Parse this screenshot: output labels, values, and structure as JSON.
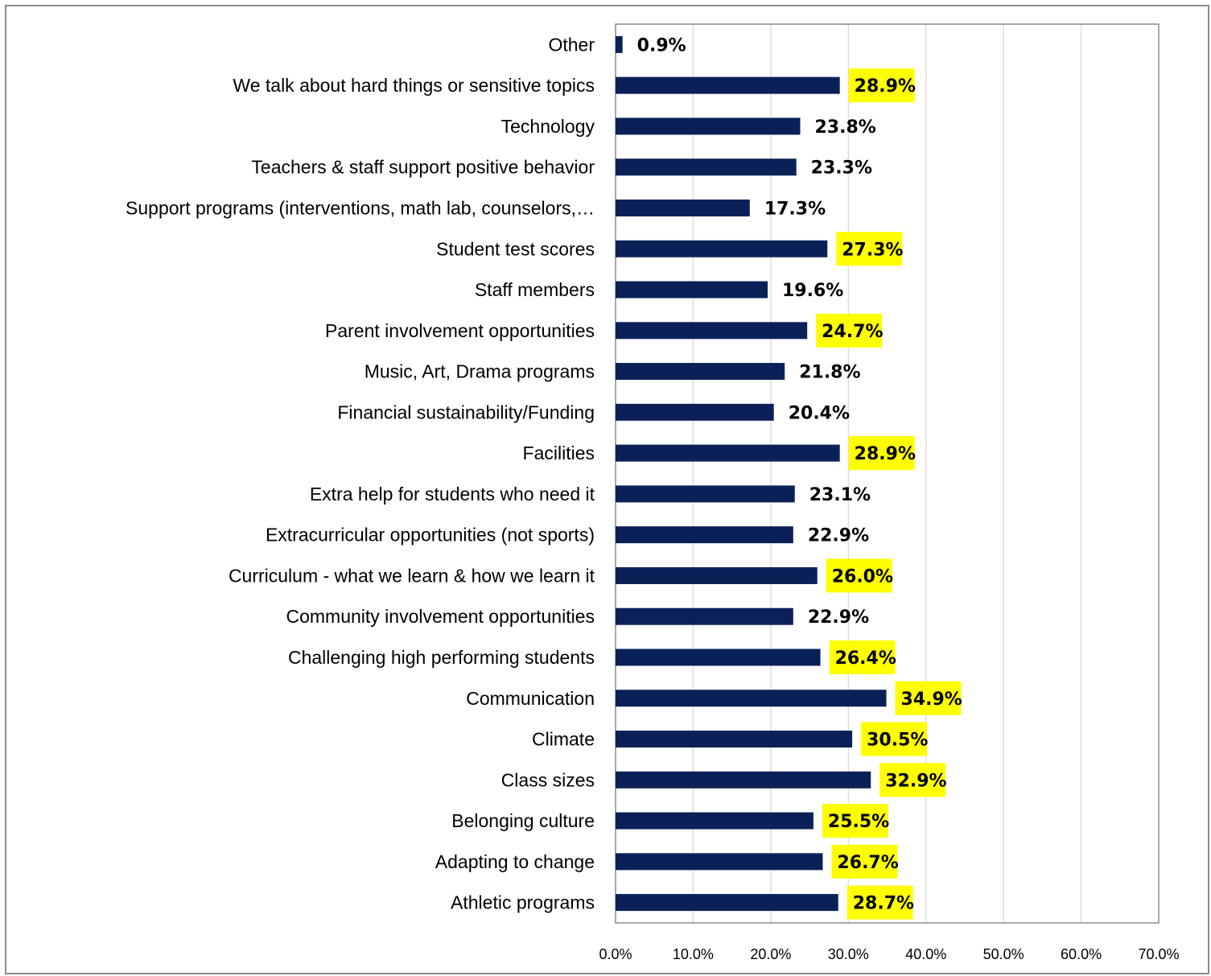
{
  "chart_data": {
    "type": "bar",
    "orientation": "horizontal",
    "categories": [
      "Other",
      "We talk about hard things or sensitive topics",
      "Technology",
      "Teachers & staff support positive behavior",
      "Support programs (interventions, math lab, counselors,…",
      "Student test scores",
      "Staff members",
      "Parent involvement opportunities",
      "Music, Art, Drama programs",
      "Financial sustainability/Funding",
      "Facilities",
      "Extra help for students who need it",
      "Extracurricular opportunities (not sports)",
      "Curriculum - what we learn & how we learn it",
      "Community involvement opportunities",
      "Challenging high performing students",
      "Communication",
      "Climate",
      "Class sizes",
      "Belonging culture",
      "Adapting to change",
      "Athletic programs"
    ],
    "values": [
      0.9,
      28.9,
      23.8,
      23.3,
      17.3,
      27.3,
      19.6,
      24.7,
      21.8,
      20.4,
      28.9,
      23.1,
      22.9,
      26.0,
      22.9,
      26.4,
      34.9,
      30.5,
      32.9,
      25.5,
      26.7,
      28.7
    ],
    "value_labels": [
      "0.9%",
      "28.9%",
      "23.8%",
      "23.3%",
      "17.3%",
      "27.3%",
      "19.6%",
      "24.7%",
      "21.8%",
      "20.4%",
      "28.9%",
      "23.1%",
      "22.9%",
      "26.0%",
      "22.9%",
      "26.4%",
      "34.9%",
      "30.5%",
      "32.9%",
      "25.5%",
      "26.7%",
      "28.7%"
    ],
    "highlighted": [
      false,
      true,
      false,
      false,
      false,
      true,
      false,
      true,
      false,
      false,
      true,
      false,
      false,
      true,
      false,
      true,
      true,
      true,
      true,
      true,
      true,
      true
    ],
    "xlim": [
      0,
      70
    ],
    "x_ticks": [
      "0.0%",
      "10.0%",
      "20.0%",
      "30.0%",
      "40.0%",
      "50.0%",
      "60.0%",
      "70.0%"
    ],
    "grid": true,
    "colors": {
      "bar": "#0a2158",
      "highlight": "#ffff00",
      "gridline": "#d9d9d9",
      "frame": "#8c8c8c"
    }
  }
}
